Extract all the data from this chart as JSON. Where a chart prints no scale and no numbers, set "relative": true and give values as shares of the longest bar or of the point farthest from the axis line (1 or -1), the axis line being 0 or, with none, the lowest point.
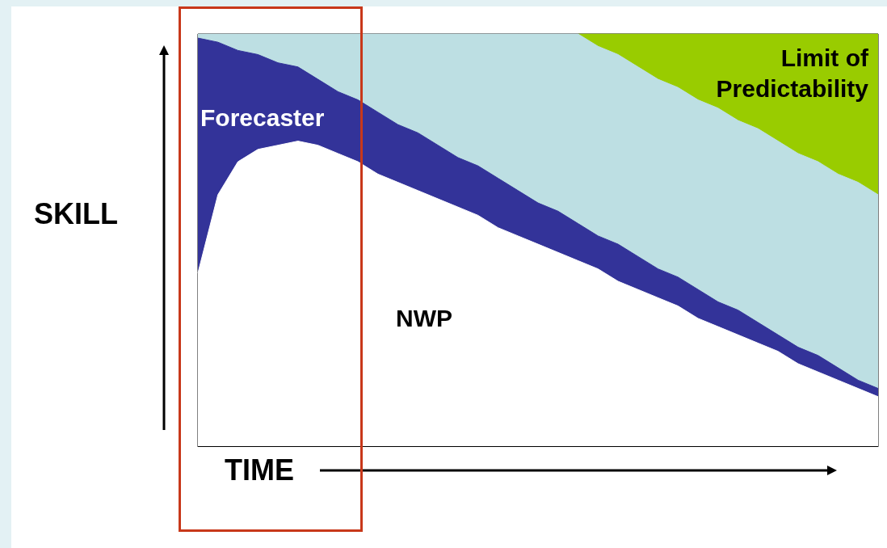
{
  "chart_data": {
    "type": "area",
    "relative": true,
    "xlabel": "TIME",
    "ylabel": "SKILL",
    "categories": [
      null,
      null,
      null,
      null,
      null,
      null,
      null,
      null,
      null,
      null,
      null,
      null,
      null,
      null,
      null,
      null,
      null,
      null,
      null,
      null,
      null,
      null,
      null,
      null,
      null,
      null,
      null,
      null,
      null,
      null,
      null,
      null,
      null,
      null,
      null
    ],
    "series": [
      {
        "name": "Limit of Predictability",
        "color": "#99cc00",
        "values": [
          null,
          null,
          null,
          null,
          null,
          null,
          null,
          null,
          null,
          null,
          null,
          null,
          null,
          null,
          null,
          null,
          null,
          null,
          null,
          1,
          1,
          1,
          1,
          1,
          1,
          1,
          1,
          1,
          1,
          1,
          1,
          1,
          1,
          1,
          1
        ]
      },
      {
        "color": "#bddfe3",
        "values": [
          1,
          1,
          1,
          1,
          1,
          1,
          1,
          1,
          1,
          1,
          1,
          1,
          1,
          1,
          1,
          1,
          1,
          1,
          1,
          1,
          0.97,
          0.95,
          0.92,
          0.89,
          0.87,
          0.84,
          0.82,
          0.79,
          0.77,
          0.74,
          0.71,
          0.69,
          0.66,
          0.64,
          0.61
        ]
      },
      {
        "name": "Forecaster",
        "color": "#333399",
        "values": [
          0.99,
          0.98,
          0.96,
          0.95,
          0.93,
          0.92,
          0.89,
          0.86,
          0.84,
          0.81,
          0.78,
          0.76,
          0.73,
          0.7,
          0.68,
          0.65,
          0.62,
          0.59,
          0.57,
          0.54,
          0.51,
          0.49,
          0.46,
          0.43,
          0.41,
          0.38,
          0.35,
          0.33,
          0.3,
          0.27,
          0.24,
          0.22,
          0.19,
          0.16,
          0.14
        ]
      },
      {
        "name": "NWP",
        "color": "#ffffff",
        "values": [
          0.42,
          0.61,
          0.69,
          0.72,
          0.73,
          0.74,
          0.73,
          0.71,
          0.69,
          0.66,
          0.64,
          0.62,
          0.6,
          0.58,
          0.56,
          0.53,
          0.51,
          0.49,
          0.47,
          0.45,
          0.43,
          0.4,
          0.38,
          0.36,
          0.34,
          0.31,
          0.29,
          0.27,
          0.25,
          0.23,
          0.2,
          0.18,
          0.16,
          0.14,
          0.12
        ]
      }
    ]
  }
}
